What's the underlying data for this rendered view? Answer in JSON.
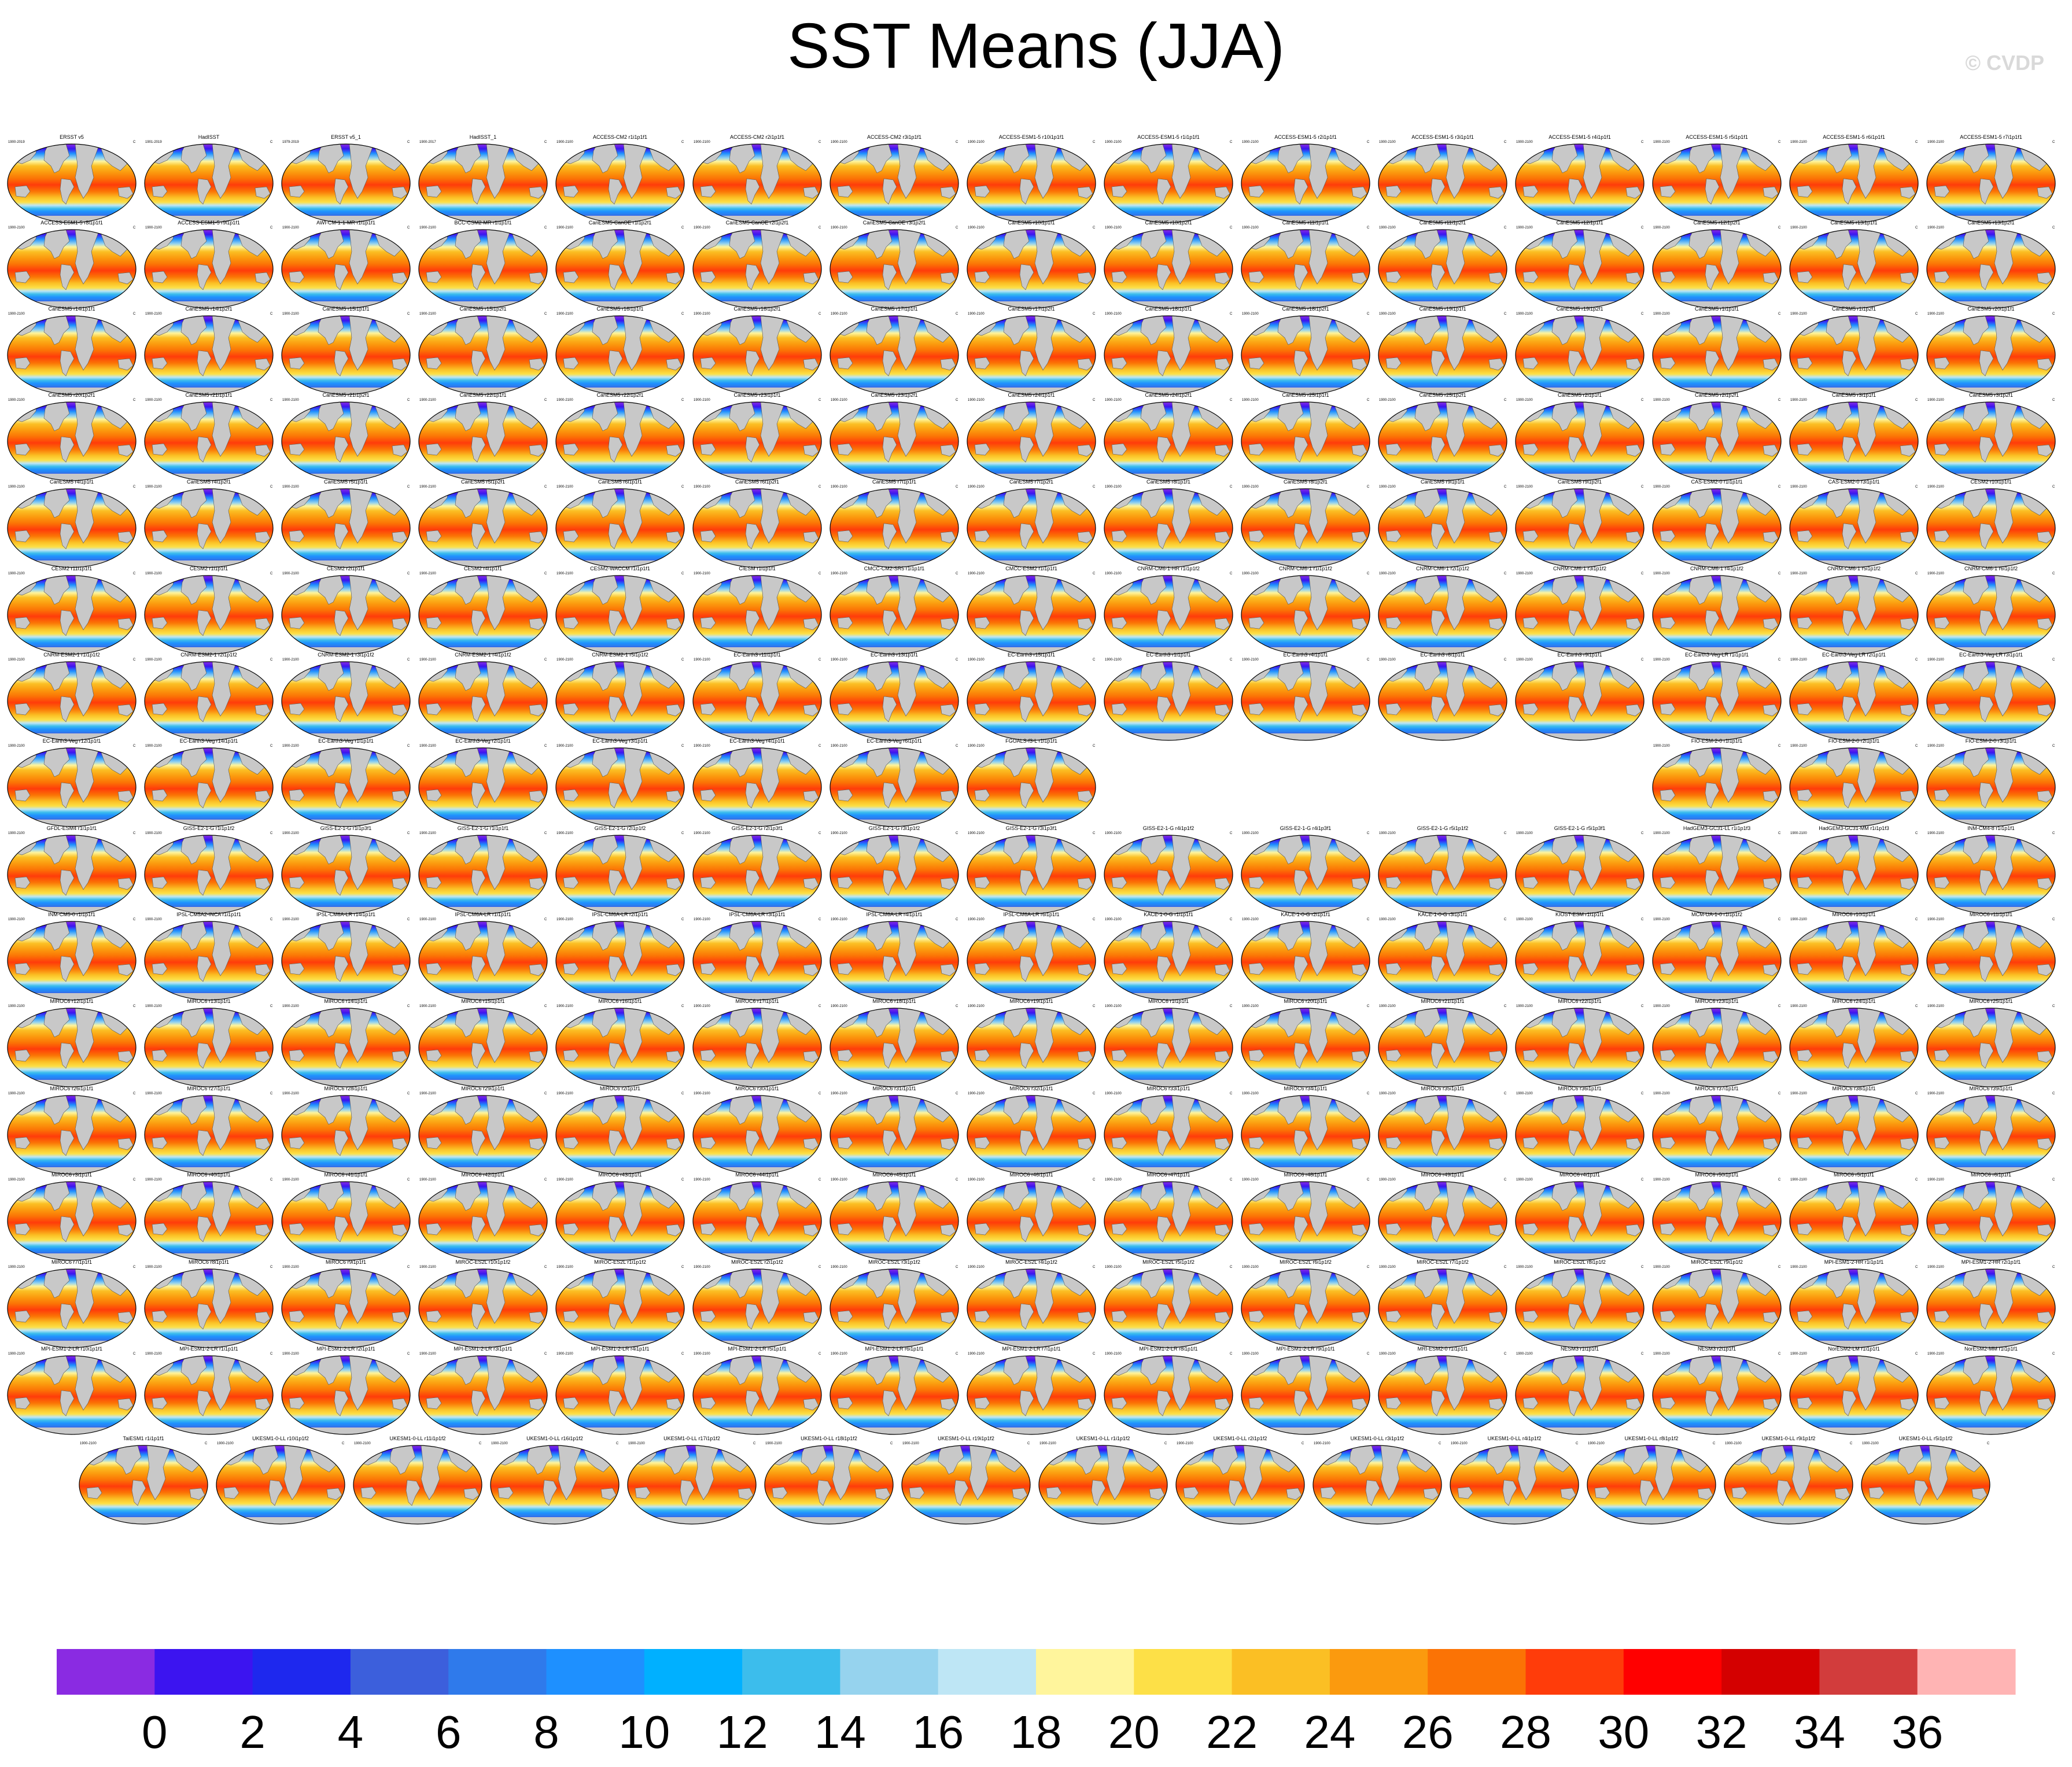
{
  "title": "SST Means (JJA)",
  "credit": "© CVDP",
  "chart_data": {
    "type": "heatmap",
    "title": "SST Means (JJA)",
    "colorbar": {
      "tick_labels": [
        "0",
        "2",
        "4",
        "6",
        "8",
        "10",
        "12",
        "14",
        "16",
        "18",
        "20",
        "22",
        "24",
        "26",
        "28",
        "30",
        "32",
        "34",
        "36"
      ],
      "boundaries": [
        0,
        2,
        4,
        6,
        8,
        10,
        12,
        14,
        16,
        18,
        20,
        22,
        24,
        26,
        28,
        30,
        32,
        34,
        36
      ],
      "colors": [
        "#8a2be2",
        "#3c14f0",
        "#1e28ee",
        "#3c5fdc",
        "#2f7aeb",
        "#1e90ff",
        "#00b0ff",
        "#3cbdec",
        "#96d3ee",
        "#bee6f5",
        "#fff59c",
        "#fde047",
        "#fbbf24",
        "#fb9a0e",
        "#fb7305",
        "#ff3c0a",
        "#ff0000",
        "#d40000",
        "#d23c3c",
        "#ffb4b4"
      ]
    },
    "panel_rows": [
      [
        "ERSST v5",
        "HadISST",
        "ERSST v5_1",
        "HadISST_1",
        "ACCESS-CM2 r1i1p1f1",
        "ACCESS-CM2 r2i1p1f1",
        "ACCESS-CM2 r3i1p1f1",
        "ACCESS-ESM1-5 r10i1p1f1",
        "ACCESS-ESM1-5 r1i1p1f1",
        "ACCESS-ESM1-5 r2i1p1f1",
        "ACCESS-ESM1-5 r3i1p1f1",
        "ACCESS-ESM1-5 r4i1p1f1",
        "ACCESS-ESM1-5 r5i1p1f1",
        "ACCESS-ESM1-5 r6i1p1f1",
        "ACCESS-ESM1-5 r7i1p1f1"
      ],
      [
        "ACCESS-ESM1-5 r8i1p1f1",
        "ACCESS-ESM1-5 r9i1p1f1",
        "AWI-CM-1-1-MR r1i1p1f1",
        "BCC-CSM2-MR r1i1p1f1",
        "CanESM5-CanOE r1i1p2f1",
        "CanESM5-CanOE r2i1p2f1",
        "CanESM5-CanOE r3i1p2f1",
        "CanESM5 r10i1p1f1",
        "CanESM5 r10i1p2f1",
        "CanESM5 r11i1p1f1",
        "CanESM5 r11i1p2f1",
        "CanESM5 r12i1p1f1",
        "CanESM5 r12i1p2f1",
        "CanESM5 r13i1p1f1",
        "CanESM5 r13i1p2f1"
      ],
      [
        "CanESM5 r14i1p1f1",
        "CanESM5 r14i1p2f1",
        "CanESM5 r15i1p1f1",
        "CanESM5 r15i1p2f1",
        "CanESM5 r16i1p1f1",
        "CanESM5 r16i1p2f1",
        "CanESM5 r17i1p1f1",
        "CanESM5 r17i1p2f1",
        "CanESM5 r18i1p1f1",
        "CanESM5 r18i1p2f1",
        "CanESM5 r19i1p1f1",
        "CanESM5 r19i1p2f1",
        "CanESM5 r1i1p1f1",
        "CanESM5 r1i1p2f1",
        "CanESM5 r20i1p1f1"
      ],
      [
        "CanESM5 r20i1p2f1",
        "CanESM5 r21i1p1f1",
        "CanESM5 r21i1p2f1",
        "CanESM5 r22i1p1f1",
        "CanESM5 r22i1p2f1",
        "CanESM5 r23i1p1f1",
        "CanESM5 r23i1p2f1",
        "CanESM5 r24i1p1f1",
        "CanESM5 r24i1p2f1",
        "CanESM5 r25i1p1f1",
        "CanESM5 r25i1p2f1",
        "CanESM5 r2i1p1f1",
        "CanESM5 r2i1p2f1",
        "CanESM5 r3i1p1f1",
        "CanESM5 r3i1p2f1"
      ],
      [
        "CanESM5 r4i1p1f1",
        "CanESM5 r4i1p2f1",
        "CanESM5 r5i1p1f1",
        "CanESM5 r5i1p2f1",
        "CanESM5 r6i1p1f1",
        "CanESM5 r6i1p2f1",
        "CanESM5 r7i1p1f1",
        "CanESM5 r7i1p2f1",
        "CanESM5 r8i1p1f1",
        "CanESM5 r8i1p2f1",
        "CanESM5 r9i1p1f1",
        "CanESM5 r9i1p2f1",
        "CAS-ESM2-0 r1i1p1f1",
        "CAS-ESM2-0 r3i1p1f1",
        "CESM2 r10i1p1f1"
      ],
      [
        "CESM2 r11i1p1f1",
        "CESM2 r1i1p1f1",
        "CESM2 r2i1p1f1",
        "CESM2 r4i1p1f1",
        "CESM2-WACCM r1i1p1f1",
        "CIESM r1i1p1f1",
        "CMCC-CM2-SR5 r1i1p1f1",
        "CMCC-ESM2 r1i1p1f1",
        "CNRM-CM6-1-HR r1i1p1f2",
        "CNRM-CM6-1 r1i1p1f2",
        "CNRM-CM6-1 r2i1p1f2",
        "CNRM-CM6-1 r3i1p1f2",
        "CNRM-CM6-1 r4i1p1f2",
        "CNRM-CM6-1 r5i1p1f2",
        "CNRM-CM6-1 r6i1p1f2"
      ],
      [
        "CNRM-ESM2-1 r1i1p1f2",
        "CNRM-ESM2-1 r2i1p1f2",
        "CNRM-ESM2-1 r3i1p1f2",
        "CNRM-ESM2-1 r4i1p1f2",
        "CNRM-ESM2-1 r5i1p1f2",
        "EC-Earth3 r11i1p1f1",
        "EC-Earth3 r13i1p1f1",
        "EC-Earth3 r15i1p1f1",
        "EC-Earth3 r1i1p1f1",
        "EC-Earth3 r4i1p1f1",
        "EC-Earth3 r6i1p1f1",
        "EC-Earth3 r9i1p1f1",
        "EC-Earth3-Veg-LR r1i1p1f1",
        "EC-Earth3-Veg-LR r2i1p1f1",
        "EC-Earth3-Veg-LR r3i1p1f1"
      ],
      [
        "EC-Earth3-Veg r12i1p1f1",
        "EC-Earth3-Veg r14i1p1f1",
        "EC-Earth3-Veg r1i1p1f1",
        "EC-Earth3-Veg r2i1p1f1",
        "EC-Earth3-Veg r3i1p1f1",
        "EC-Earth3-Veg r4i1p1f1",
        "EC-Earth3-Veg r6i1p1f1",
        "FGOALS-f3-L r1i1p1f1",
        "",
        "",
        "",
        "",
        "FIO-ESM-2-0 r1i1p1f1",
        "FIO-ESM-2-0 r2i1p1f1",
        "FIO-ESM-2-0 r3i1p1f1"
      ],
      [
        "GFDL-ESM4 r1i1p1f1",
        "GISS-E2-1-G r1i1p1f2",
        "GISS-E2-1-G r1i1p3f1",
        "GISS-E2-1-G r1i1p1f1",
        "GISS-E2-1-G r2i1p1f2",
        "GISS-E2-1-G r2i1p3f1",
        "GISS-E2-1-G r3i1p1f2",
        "GISS-E2-1-G r3i1p3f1",
        "GISS-E2-1-G r4i1p1f2",
        "GISS-E2-1-G r4i1p3f1",
        "GISS-E2-1-G r5i1p1f2",
        "GISS-E2-1-G r5i1p3f1",
        "HadGEM3-GC31-LL r1i1p1f3",
        "HadGEM3-GC31-MM r1i1p1f3",
        "INM-CM4-8 r1i1p1f1"
      ],
      [
        "INM-CM5-0 r1i1p1f1",
        "IPSL-CM5A2-INCA r1i1p1f1",
        "IPSL-CM6A-LR r14i1p1f1",
        "IPSL-CM6A-LR r1i1p1f1",
        "IPSL-CM6A-LR r2i1p1f1",
        "IPSL-CM6A-LR r3i1p1f1",
        "IPSL-CM6A-LR r4i1p1f1",
        "IPSL-CM6A-LR r6i1p1f1",
        "KACE-1-0-G r1i1p1f1",
        "KACE-1-0-G r2i1p1f1",
        "KACE-1-0-G r3i1p1f1",
        "KIOST-ESM r1i1p1f1",
        "MCM-UA-1-0 r1i1p1f2",
        "MIROC6 r10i1p1f1",
        "MIROC6 r11i1p1f1"
      ],
      [
        "MIROC6 r12i1p1f1",
        "MIROC6 r13i1p1f1",
        "MIROC6 r14i1p1f1",
        "MIROC6 r15i1p1f1",
        "MIROC6 r16i1p1f1",
        "MIROC6 r17i1p1f1",
        "MIROC6 r18i1p1f1",
        "MIROC6 r19i1p1f1",
        "MIROC6 r1i1p1f1",
        "MIROC6 r20i1p1f1",
        "MIROC6 r21i1p1f1",
        "MIROC6 r22i1p1f1",
        "MIROC6 r23i1p1f1",
        "MIROC6 r24i1p1f1",
        "MIROC6 r25i1p1f1"
      ],
      [
        "MIROC6 r26i1p1f1",
        "MIROC6 r27i1p1f1",
        "MIROC6 r28i1p1f1",
        "MIROC6 r29i1p1f1",
        "MIROC6 r2i1p1f1",
        "MIROC6 r30i1p1f1",
        "MIROC6 r31i1p1f1",
        "MIROC6 r32i1p1f1",
        "MIROC6 r33i1p1f1",
        "MIROC6 r34i1p1f1",
        "MIROC6 r35i1p1f1",
        "MIROC6 r36i1p1f1",
        "MIROC6 r37i1p1f1",
        "MIROC6 r38i1p1f1",
        "MIROC6 r39i1p1f1"
      ],
      [
        "MIROC6 r3i1p1f1",
        "MIROC6 r40i1p1f1",
        "MIROC6 r41i1p1f1",
        "MIROC6 r42i1p1f1",
        "MIROC6 r43i1p1f1",
        "MIROC6 r44i1p1f1",
        "MIROC6 r45i1p1f1",
        "MIROC6 r46i1p1f1",
        "MIROC6 r47i1p1f1",
        "MIROC6 r48i1p1f1",
        "MIROC6 r49i1p1f1",
        "MIROC6 r4i1p1f1",
        "MIROC6 r50i1p1f1",
        "MIROC6 r5i1p1f1",
        "MIROC6 r6i1p1f1"
      ],
      [
        "MIROC6 r7i1p1f1",
        "MIROC6 r8i1p1f1",
        "MIROC6 r9i1p1f1",
        "MIROC-ES2L r10i1p1f2",
        "MIROC-ES2L r1i1p1f2",
        "MIROC-ES2L r2i1p1f2",
        "MIROC-ES2L r3i1p1f2",
        "MIROC-ES2L r4i1p1f2",
        "MIROC-ES2L r5i1p1f2",
        "MIROC-ES2L r6i1p1f2",
        "MIROC-ES2L r7i1p1f2",
        "MIROC-ES2L r8i1p1f2",
        "MIROC-ES2L r9i1p1f2",
        "MPI-ESM1-2-HR r1i1p1f1",
        "MPI-ESM1-2-HR r2i1p1f1"
      ],
      [
        "MPI-ESM1-2-LR r10i1p1f1",
        "MPI-ESM1-2-LR r1i1p1f1",
        "MPI-ESM1-2-LR r2i1p1f1",
        "MPI-ESM1-2-LR r3i1p1f1",
        "MPI-ESM1-2-LR r4i1p1f1",
        "MPI-ESM1-2-LR r5i1p1f1",
        "MPI-ESM1-2-LR r6i1p1f1",
        "MPI-ESM1-2-LR r7i1p1f1",
        "MPI-ESM1-2-LR r8i1p1f1",
        "MPI-ESM1-2-LR r9i1p1f1",
        "MRI-ESM2-0 r1i1p1f1",
        "NESM3 r1i1p1f1",
        "NESM3 r2i1p1f1",
        "NorESM2-LM r1i1p1f1",
        "NorESM2-MM r1i1p1f1"
      ],
      [
        "TaiESM1 r1i1p1f1",
        "UKESM1-0-LL r10i1p1f2",
        "UKESM1-0-LL r11i1p1f2",
        "UKESM1-0-LL r16i1p1f2",
        "UKESM1-0-LL r17i1p1f2",
        "UKESM1-0-LL r18i1p1f2",
        "UKESM1-0-LL r19i1p1f2",
        "UKESM1-0-LL r1i1p1f2",
        "UKESM1-0-LL r2i1p1f2",
        "UKESM1-0-LL r3i1p1f2",
        "UKESM1-0-LL r4i1p1f2",
        "UKESM1-0-LL r8i1p1f2",
        "UKESM1-0-LL r9i1p1f2",
        "UKESM1-0-LL r5i1p1f2"
      ]
    ],
    "panel_years": {
      "ERSST v5": "1900-2019",
      "HadISST": "1901-2019",
      "ERSST v5_1": "1979-2019",
      "HadISST_1": "1900-2017",
      "default": "1900-2100"
    },
    "panel_units": "C",
    "land_color": "#c8c8c8"
  }
}
